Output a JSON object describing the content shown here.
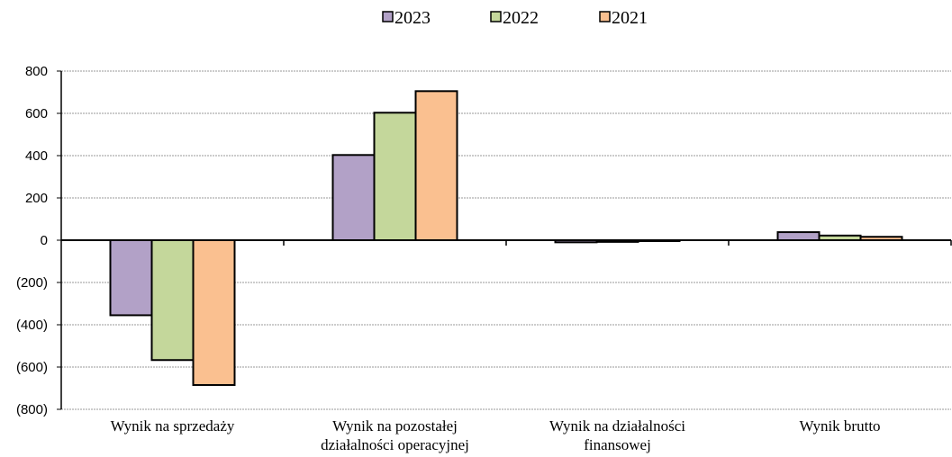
{
  "chart_data": {
    "type": "bar",
    "title": "",
    "xlabel": "",
    "ylabel": "",
    "categories": [
      [
        "Wynik na sprzedaży"
      ],
      [
        "Wynik na pozostałej",
        "działalności operacyjnej"
      ],
      [
        "Wynik na działalności",
        "finansowej"
      ],
      [
        "Wynik brutto"
      ]
    ],
    "series": [
      {
        "name": "2023",
        "color": "#B2A1C7",
        "values": [
          -355,
          403,
          -10,
          38
        ]
      },
      {
        "name": "2022",
        "color": "#C4D79B",
        "values": [
          -567,
          603,
          -8,
          22
        ]
      },
      {
        "name": "2021",
        "color": "#FAC090",
        "values": [
          -685,
          705,
          -4,
          16
        ]
      }
    ],
    "ylim": [
      -800,
      800
    ],
    "yticks": [
      800,
      600,
      400,
      200,
      0,
      -200,
      -400,
      -600,
      -800
    ],
    "ytick_labels": [
      "800",
      "600",
      "400",
      "200",
      "0",
      "(200)",
      "(400)",
      "(600)",
      "(800)"
    ],
    "grid": true,
    "legend_position": "top-center"
  }
}
